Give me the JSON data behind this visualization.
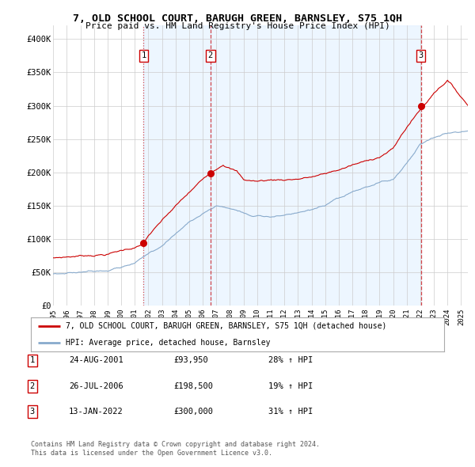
{
  "title": "7, OLD SCHOOL COURT, BARUGH GREEN, BARNSLEY, S75 1QH",
  "subtitle": "Price paid vs. HM Land Registry's House Price Index (HPI)",
  "ylabel_ticks": [
    "£0",
    "£50K",
    "£100K",
    "£150K",
    "£200K",
    "£250K",
    "£300K",
    "£350K",
    "£400K"
  ],
  "ytick_vals": [
    0,
    50000,
    100000,
    150000,
    200000,
    250000,
    300000,
    350000,
    400000
  ],
  "ylim": [
    0,
    420000
  ],
  "xlim_start": 1995.0,
  "xlim_end": 2025.5,
  "xtick_years": [
    1995,
    1996,
    1997,
    1998,
    1999,
    2000,
    2001,
    2002,
    2003,
    2004,
    2005,
    2006,
    2007,
    2008,
    2009,
    2010,
    2011,
    2012,
    2013,
    2014,
    2015,
    2016,
    2017,
    2018,
    2019,
    2020,
    2021,
    2022,
    2023,
    2024,
    2025
  ],
  "sale_dates": [
    2001.648,
    2006.568,
    2022.04
  ],
  "sale_prices": [
    93950,
    198500,
    300000
  ],
  "sale_labels": [
    "1",
    "2",
    "3"
  ],
  "red_line_color": "#cc0000",
  "blue_line_color": "#88aacc",
  "vline_color": "#cc0000",
  "shading_color": "#ddeeff",
  "shading_alpha": 0.5,
  "grid_color": "#cccccc",
  "background_color": "#ffffff",
  "legend_label_red": "7, OLD SCHOOL COURT, BARUGH GREEN, BARNSLEY, S75 1QH (detached house)",
  "legend_label_blue": "HPI: Average price, detached house, Barnsley",
  "footer_line1": "Contains HM Land Registry data © Crown copyright and database right 2024.",
  "footer_line2": "This data is licensed under the Open Government Licence v3.0.",
  "table_rows": [
    {
      "num": "1",
      "date": "24-AUG-2001",
      "price": "£93,950",
      "pct": "28% ↑ HPI"
    },
    {
      "num": "2",
      "date": "26-JUL-2006",
      "price": "£198,500",
      "pct": "19% ↑ HPI"
    },
    {
      "num": "3",
      "date": "13-JAN-2022",
      "price": "£300,000",
      "pct": "31% ↑ HPI"
    }
  ]
}
